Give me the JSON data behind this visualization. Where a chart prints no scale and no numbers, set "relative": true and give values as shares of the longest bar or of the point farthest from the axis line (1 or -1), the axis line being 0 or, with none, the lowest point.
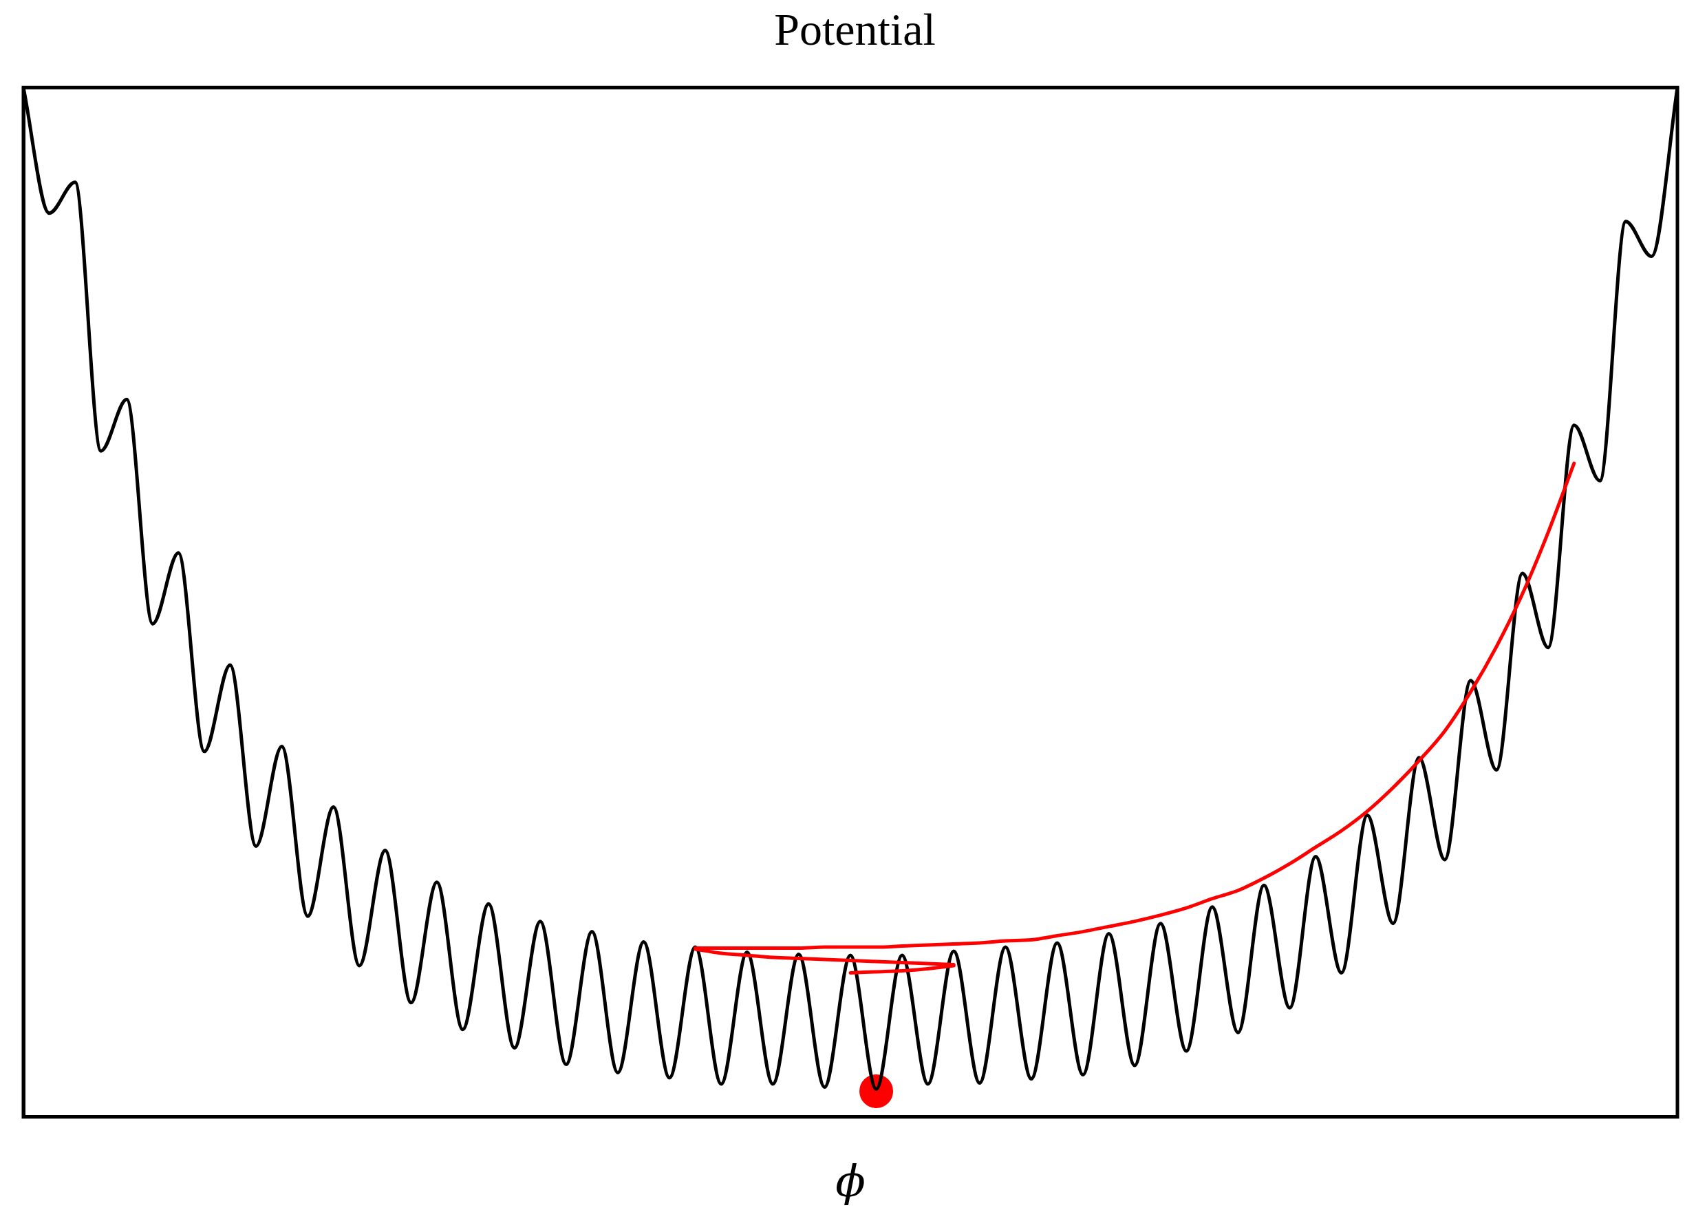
{
  "chart_data": {
    "type": "line",
    "title": "Potential",
    "xlabel": "ϕ",
    "relative": true,
    "grid": false,
    "legend": false,
    "categories": [
      null,
      null,
      null,
      null,
      null,
      null,
      null,
      null,
      null,
      null,
      null,
      null,
      null,
      null,
      null,
      null,
      null,
      null,
      null,
      null,
      null,
      null,
      null,
      null,
      null,
      null,
      null,
      null,
      null,
      null,
      null,
      null,
      null,
      null,
      null,
      null,
      null,
      null,
      null,
      null,
      null,
      null,
      null,
      null,
      null,
      null,
      null,
      null,
      null,
      null,
      null,
      null,
      null,
      null,
      null,
      null,
      null,
      null,
      null,
      null,
      null,
      null,
      null,
      null,
      null
    ],
    "series": [
      {
        "color": "#000000",
        "marker": "none",
        "values": [
          1.0,
          0.878,
          0.908,
          0.647,
          0.697,
          0.479,
          0.548,
          0.355,
          0.439,
          0.263,
          0.36,
          0.195,
          0.301,
          0.147,
          0.259,
          0.111,
          0.228,
          0.085,
          0.207,
          0.067,
          0.19,
          0.051,
          0.18,
          0.043,
          0.17,
          0.038,
          0.165,
          0.032,
          0.16,
          0.032,
          0.158,
          0.029,
          0.157,
          0.027,
          0.157,
          0.032,
          0.161,
          0.033,
          0.165,
          0.037,
          0.169,
          0.041,
          0.178,
          0.05,
          0.188,
          0.064,
          0.204,
          0.082,
          0.225,
          0.106,
          0.253,
          0.14,
          0.293,
          0.188,
          0.349,
          0.25,
          0.424,
          0.337,
          0.528,
          0.456,
          0.672,
          0.618,
          0.87,
          0.836,
          1.0
        ]
      },
      {
        "color": "#ff0000",
        "marker": "none",
        "values": [
          null,
          null,
          null,
          null,
          null,
          null,
          null,
          null,
          null,
          null,
          null,
          null,
          null,
          null,
          null,
          null,
          null,
          null,
          null,
          null,
          null,
          null,
          null,
          null,
          null,
          null,
          0.164,
          0.164,
          0.164,
          0.164,
          0.164,
          0.165,
          0.165,
          0.165,
          0.166,
          0.167,
          0.168,
          0.169,
          0.171,
          0.172,
          0.176,
          0.18,
          0.185,
          0.19,
          0.196,
          0.203,
          0.212,
          0.22,
          0.232,
          0.246,
          0.262,
          0.278,
          0.297,
          0.32,
          0.346,
          0.375,
          0.413,
          0.457,
          0.508,
          0.568,
          0.635,
          null,
          null,
          null,
          null
        ]
      },
      {
        "color": "#ff0000",
        "marker": "none",
        "values": [
          null,
          null,
          null,
          null,
          null,
          null,
          null,
          null,
          null,
          null,
          null,
          null,
          null,
          null,
          null,
          null,
          null,
          null,
          null,
          null,
          null,
          null,
          null,
          null,
          null,
          null,
          0.163,
          0.159,
          0.157,
          0.155,
          0.154,
          0.153,
          0.152,
          0.151,
          0.15,
          0.149,
          0.148,
          null,
          null,
          null,
          null,
          null,
          null,
          null,
          null,
          null,
          null,
          null,
          null,
          null,
          null,
          null,
          null,
          null,
          null,
          null,
          null,
          null,
          null,
          null,
          null,
          null,
          null,
          null,
          null
        ]
      },
      {
        "color": "#ff0000",
        "marker": "none",
        "values": [
          null,
          null,
          null,
          null,
          null,
          null,
          null,
          null,
          null,
          null,
          null,
          null,
          null,
          null,
          null,
          null,
          null,
          null,
          null,
          null,
          null,
          null,
          null,
          null,
          null,
          null,
          null,
          null,
          null,
          null,
          null,
          null,
          0.14,
          0.141,
          0.142,
          0.144,
          0.147,
          null,
          null,
          null,
          null,
          null,
          null,
          null,
          null,
          null,
          null,
          null,
          null,
          null,
          null,
          null,
          null,
          null,
          null,
          null,
          null,
          null,
          null,
          null,
          null,
          null,
          null,
          null,
          null
        ]
      },
      {
        "color": "#ff0000",
        "marker": "circle",
        "values": [
          null,
          null,
          null,
          null,
          null,
          null,
          null,
          null,
          null,
          null,
          null,
          null,
          null,
          null,
          null,
          null,
          null,
          null,
          null,
          null,
          null,
          null,
          null,
          null,
          null,
          null,
          null,
          null,
          null,
          null,
          null,
          null,
          null,
          0.025,
          null,
          null,
          null,
          null,
          null,
          null,
          null,
          null,
          null,
          null,
          null,
          null,
          null,
          null,
          null,
          null,
          null,
          null,
          null,
          null,
          null,
          null,
          null,
          null,
          null,
          null,
          null,
          null,
          null,
          null,
          null
        ]
      }
    ]
  }
}
